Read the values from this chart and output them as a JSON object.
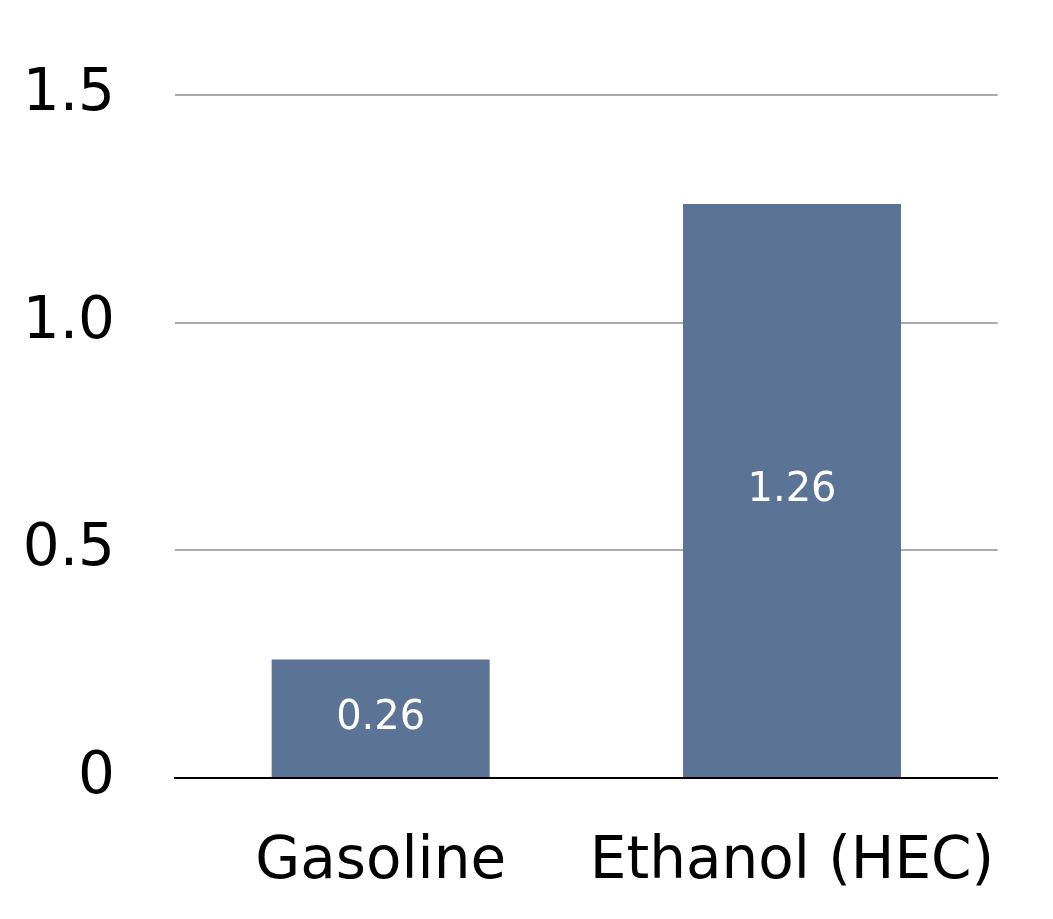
{
  "chart_data": {
    "type": "bar",
    "categories": [
      "Gasoline",
      "Ethanol (HEC)"
    ],
    "values": [
      0.26,
      1.26
    ],
    "color": "#5b7394",
    "ylim": [
      0,
      1.5
    ],
    "yticks": [
      {
        "value": 0,
        "label": "0"
      },
      {
        "value": 0.5,
        "label": "0.5"
      },
      {
        "value": 1,
        "label": "1.0"
      },
      {
        "value": 1.5,
        "label": "1.5"
      }
    ],
    "grid": "y",
    "data_labels": true,
    "legend": false
  }
}
